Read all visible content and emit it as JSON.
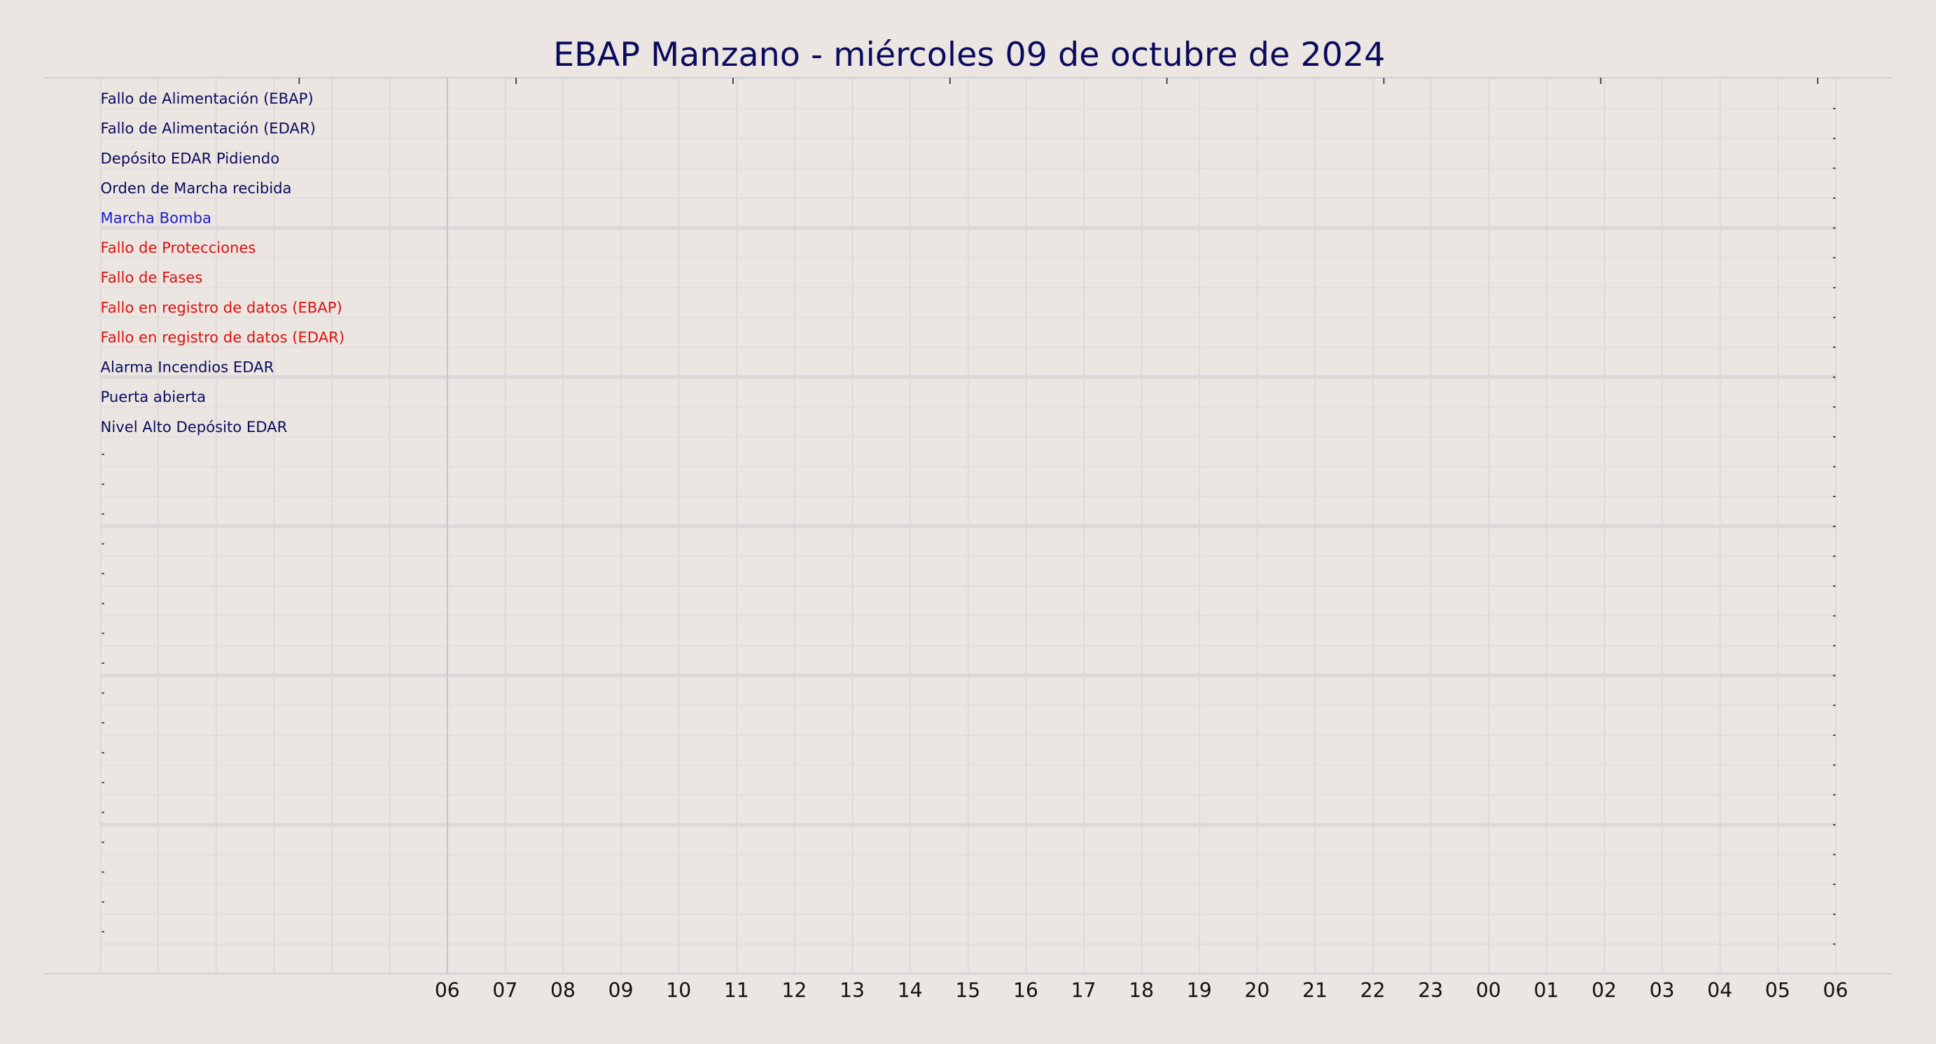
{
  "header": {
    "title": "EBAP Manzano   -   miércoles 09 de octubre de 2024"
  },
  "signals": [
    {
      "label": "Fallo de Alimentación (EBAP)",
      "color": "#0b0b5e"
    },
    {
      "label": "Fallo de Alimentación (EDAR)",
      "color": "#0b0b5e"
    },
    {
      "label": "Depósito EDAR Pidiendo",
      "color": "#0b0b5e"
    },
    {
      "label": "Orden de Marcha recibida",
      "color": "#0b0b5e"
    },
    {
      "label": "Marcha Bomba",
      "color": "#1c1ccc"
    },
    {
      "label": "Fallo de Protecciones",
      "color": "#dd1111"
    },
    {
      "label": "Fallo de Fases",
      "color": "#dd1111"
    },
    {
      "label": "Fallo en registro de datos (EBAP)",
      "color": "#dd1111"
    },
    {
      "label": "Fallo en registro de datos (EDAR)",
      "color": "#dd1111"
    },
    {
      "label": "Alarma Incendios EDAR",
      "color": "#0b0b5e"
    },
    {
      "label": "Puerta abierta",
      "color": "#0b0b5e"
    },
    {
      "label": "Nivel Alto Depósito EDAR",
      "color": "#0b0b5e"
    }
  ],
  "hours": [
    "06",
    "07",
    "08",
    "09",
    "10",
    "11",
    "12",
    "13",
    "14",
    "15",
    "16",
    "17",
    "18",
    "19",
    "20",
    "21",
    "22",
    "23",
    "00",
    "01",
    "02",
    "03",
    "04",
    "05",
    "06"
  ]
}
